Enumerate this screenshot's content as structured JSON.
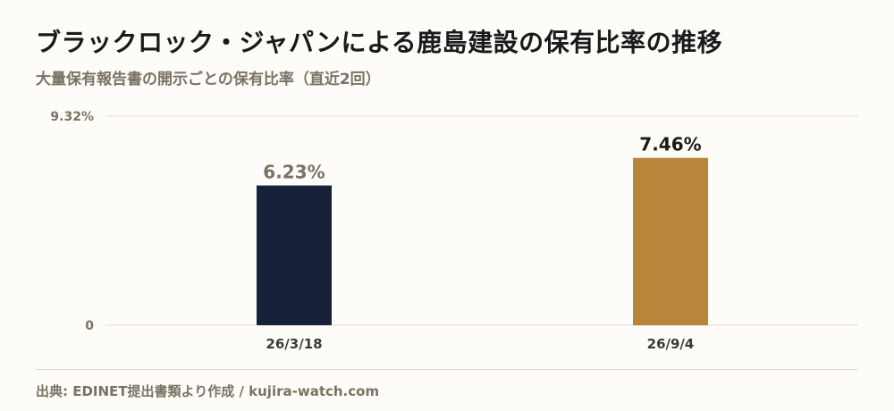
{
  "header": {
    "title": "ブラックロック・ジャパンによる鹿島建設の保有比率の推移",
    "subtitle": "大量保有報告書の開示ごとの保有比率（直近2回）"
  },
  "footer": {
    "source": "出典: EDINET提出書類より作成 / kujira-watch.com"
  },
  "colors": {
    "bar_past": "#18213a",
    "bar_latest": "#b8863b",
    "grid": "#e2ddce",
    "axis_text": "#7a7264",
    "label_past": "#7a7264",
    "label_latest": "#1a1a1a"
  },
  "chart_data": {
    "type": "bar",
    "categories": [
      "26/3/18",
      "26/9/4"
    ],
    "values": [
      6.23,
      7.46
    ],
    "value_labels": [
      "6.23%",
      "7.46%"
    ],
    "ylim": [
      0,
      9.32
    ],
    "ytick_labels": [
      "0",
      "9.32%"
    ],
    "title": "",
    "xlabel": "",
    "ylabel": "",
    "grid": true,
    "legend": "none"
  }
}
